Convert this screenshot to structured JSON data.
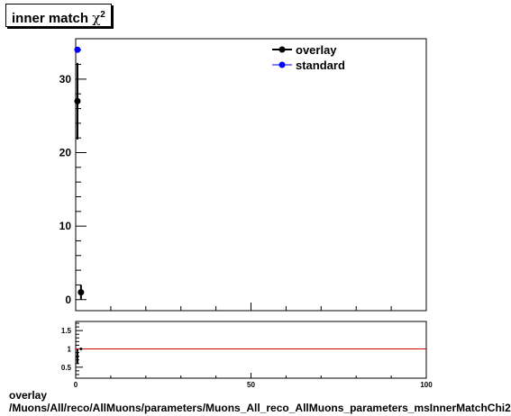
{
  "title": {
    "text": "inner match",
    "symbol": "χ",
    "superscript": "2"
  },
  "footer": {
    "line1": "overlay",
    "line2": "/Muons/All/reco/AllMuons/parameters/Muons_All_reco_AllMuons_parameters_msInnerMatchChi2"
  },
  "chart_data": [
    {
      "type": "scatter",
      "panel": "main",
      "title": "inner match χ2",
      "xlim": [
        0,
        100
      ],
      "ylim": [
        -1.5,
        35.5
      ],
      "yticks": [
        0,
        10,
        20,
        30
      ],
      "xtick_labels_shown": false,
      "legend_placement": "top-right",
      "series": [
        {
          "name": "overlay",
          "color": "#000000",
          "points": [
            {
              "x": 0.5,
              "y": 27,
              "yerr": 5.2
            },
            {
              "x": 1.5,
              "y": 1,
              "yerr": 1.0
            }
          ]
        },
        {
          "name": "standard",
          "color": "#0000ff",
          "points": [
            {
              "x": 0.5,
              "y": 34,
              "yerr": 0
            }
          ]
        }
      ]
    },
    {
      "type": "line",
      "panel": "ratio",
      "xlim": [
        0,
        100
      ],
      "ylim": [
        0.2,
        1.75
      ],
      "yticks": [
        0.5,
        1,
        1.5
      ],
      "ytick_labels": [
        "0.5",
        "1",
        "1.5"
      ],
      "xticks": [
        0,
        50,
        100
      ],
      "xtick_labels": [
        "0",
        "50",
        "100"
      ],
      "reference_line": {
        "y": 1,
        "color": "#cc0000"
      },
      "points": [
        {
          "x": 0.5,
          "y": 0.79,
          "yerr": 0.2
        },
        {
          "x": 1.5,
          "y": 1.0,
          "yerr": 0
        }
      ]
    }
  ]
}
